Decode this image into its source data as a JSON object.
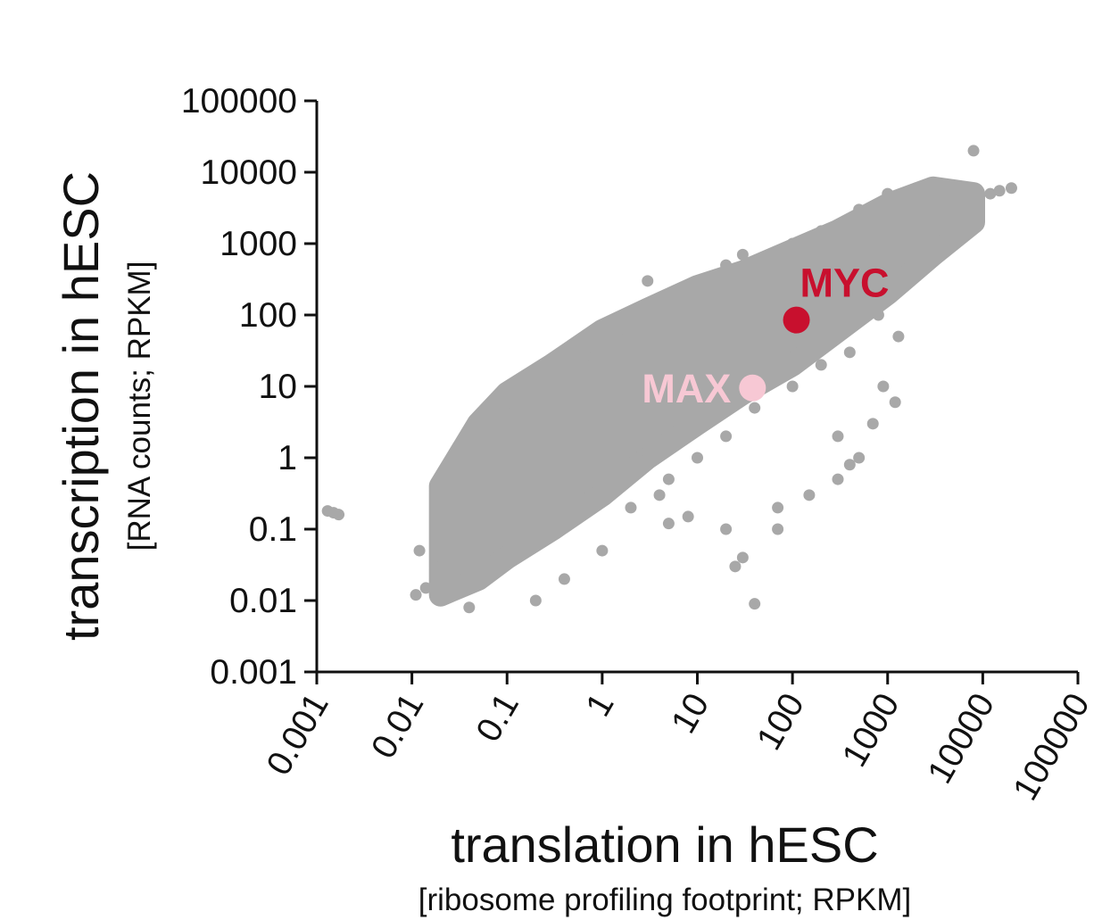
{
  "chart_data": {
    "type": "scatter",
    "title": "",
    "xlabel": "translation in hESC",
    "xlabel_sub": "[ribosome profiling footprint; RPKM]",
    "ylabel": "transcription in hESC",
    "ylabel_sub": "[RNA counts; RPKM]",
    "x_scale": "log",
    "y_scale": "log",
    "xlim": [
      0.001,
      100000
    ],
    "ylim": [
      0.001,
      100000
    ],
    "x_ticks": [
      "0.001",
      "0.01",
      "0.1",
      "1",
      "10",
      "100",
      "1000",
      "10000",
      "100000"
    ],
    "y_ticks": [
      "0.001",
      "0.01",
      "0.1",
      "1",
      "10",
      "100",
      "1000",
      "10000",
      "100000"
    ],
    "grid": false,
    "legend": "none",
    "background_color": "#a8a8a8",
    "series": [
      {
        "color": "#a8a8a8",
        "points": [
          [
            0.0015,
            0.17
          ],
          [
            0.0017,
            0.16
          ],
          [
            0.0013,
            0.18
          ],
          [
            0.011,
            0.012
          ],
          [
            0.014,
            0.015
          ],
          [
            0.012,
            0.05
          ],
          [
            0.02,
            0.03
          ],
          [
            0.04,
            0.008
          ],
          [
            0.03,
            0.02
          ],
          [
            0.05,
            0.05
          ],
          [
            0.08,
            0.3
          ],
          [
            0.1,
            1
          ],
          [
            0.14,
            1.5
          ],
          [
            0.08,
            3
          ],
          [
            0.3,
            5
          ],
          [
            0.5,
            10
          ],
          [
            0.8,
            20
          ],
          [
            1,
            40
          ],
          [
            2,
            100
          ],
          [
            3,
            300
          ],
          [
            5,
            60
          ],
          [
            10,
            200
          ],
          [
            20,
            500
          ],
          [
            30,
            700
          ],
          [
            60,
            300
          ],
          [
            100,
            1000
          ],
          [
            200,
            1500
          ],
          [
            300,
            800
          ],
          [
            500,
            3000
          ],
          [
            1000,
            5000
          ],
          [
            2000,
            6000
          ],
          [
            3000,
            7000
          ],
          [
            5000,
            3000
          ],
          [
            8000,
            20000
          ],
          [
            12000,
            5000
          ],
          [
            20000,
            6000
          ],
          [
            15000,
            5500
          ],
          [
            0.2,
            0.01
          ],
          [
            0.4,
            0.02
          ],
          [
            1,
            0.05
          ],
          [
            2,
            0.2
          ],
          [
            5,
            0.5
          ],
          [
            10,
            1
          ],
          [
            20,
            2
          ],
          [
            40,
            5
          ],
          [
            100,
            10
          ],
          [
            200,
            20
          ],
          [
            400,
            30
          ],
          [
            800,
            100
          ],
          [
            1000,
            200
          ],
          [
            0.03,
            0.1
          ],
          [
            0.06,
            0.05
          ],
          [
            0.15,
            0.2
          ],
          [
            0.3,
            0.15
          ],
          [
            0.6,
            0.5
          ],
          [
            1.5,
            0.6
          ],
          [
            3,
            1.2
          ],
          [
            6,
            2
          ],
          [
            12,
            6
          ],
          [
            25,
            12
          ],
          [
            50,
            30
          ],
          [
            120,
            60
          ],
          [
            250,
            120
          ],
          [
            600,
            400
          ],
          [
            1500,
            900
          ],
          [
            4,
            0.3
          ],
          [
            5,
            0.12
          ],
          [
            8,
            0.15
          ],
          [
            20,
            0.1
          ],
          [
            25,
            0.03
          ],
          [
            30,
            0.04
          ],
          [
            40,
            0.009
          ],
          [
            70,
            0.2
          ],
          [
            70,
            0.1
          ],
          [
            150,
            0.3
          ],
          [
            300,
            0.5
          ],
          [
            500,
            1
          ],
          [
            700,
            3
          ],
          [
            900,
            10
          ],
          [
            1200,
            6
          ],
          [
            1300,
            50
          ],
          [
            300,
            2
          ],
          [
            400,
            0.8
          ]
        ]
      },
      {
        "name": "MYC",
        "color": "#c8102e",
        "points": [
          [
            110,
            85
          ]
        ],
        "label": "MYC"
      },
      {
        "name": "MAX",
        "color": "#f7c8d4",
        "points": [
          [
            38,
            9.5
          ]
        ],
        "label": "MAX"
      }
    ]
  }
}
